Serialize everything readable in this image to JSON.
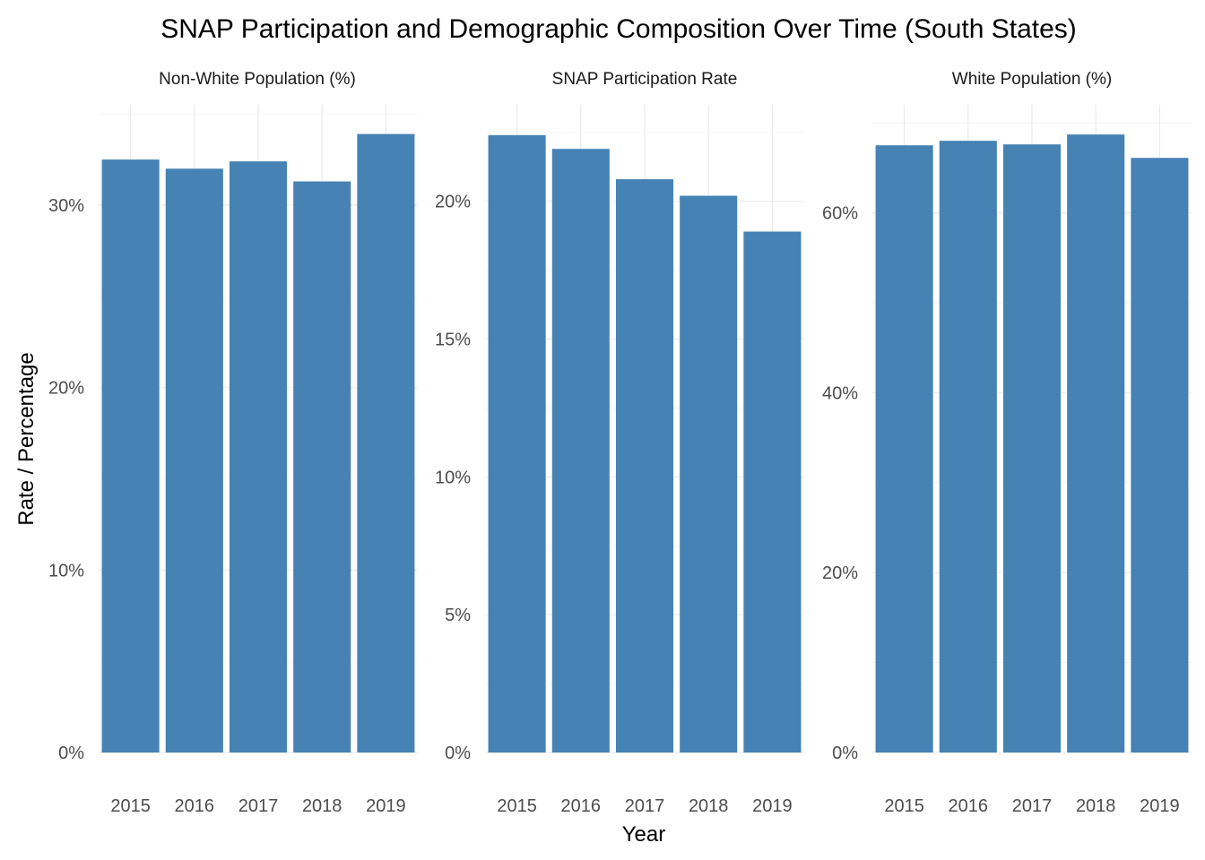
{
  "chart_data": {
    "type": "bar",
    "title": "SNAP Participation and Demographic Composition Over Time (South States)",
    "xlabel": "Year",
    "ylabel": "Rate / Percentage",
    "bar_color": "#4682b4",
    "grid": true,
    "categories": [
      "2015",
      "2016",
      "2017",
      "2018",
      "2019"
    ],
    "facets": [
      {
        "name": "Non-White Population (%)",
        "values": [
          32.5,
          32.0,
          32.4,
          31.3,
          33.9
        ],
        "ylim": [
          0,
          35.5
        ],
        "yticks": [
          0,
          10,
          20,
          30
        ],
        "ytick_labels": [
          "0%",
          "10%",
          "20%",
          "30%"
        ]
      },
      {
        "name": "SNAP Participation Rate",
        "values": [
          22.4,
          21.9,
          20.8,
          20.2,
          18.9
        ],
        "ylim": [
          0,
          23.5
        ],
        "yticks": [
          0,
          5,
          10,
          15,
          20
        ],
        "ytick_labels": [
          "0%",
          "5%",
          "10%",
          "15%",
          "20%"
        ]
      },
      {
        "name": "White Population (%)",
        "values": [
          67.5,
          68.0,
          67.6,
          68.7,
          66.1
        ],
        "ylim": [
          0,
          72
        ],
        "yticks": [
          0,
          20,
          40,
          60
        ],
        "ytick_labels": [
          "0%",
          "20%",
          "40%",
          "60%"
        ]
      }
    ]
  }
}
